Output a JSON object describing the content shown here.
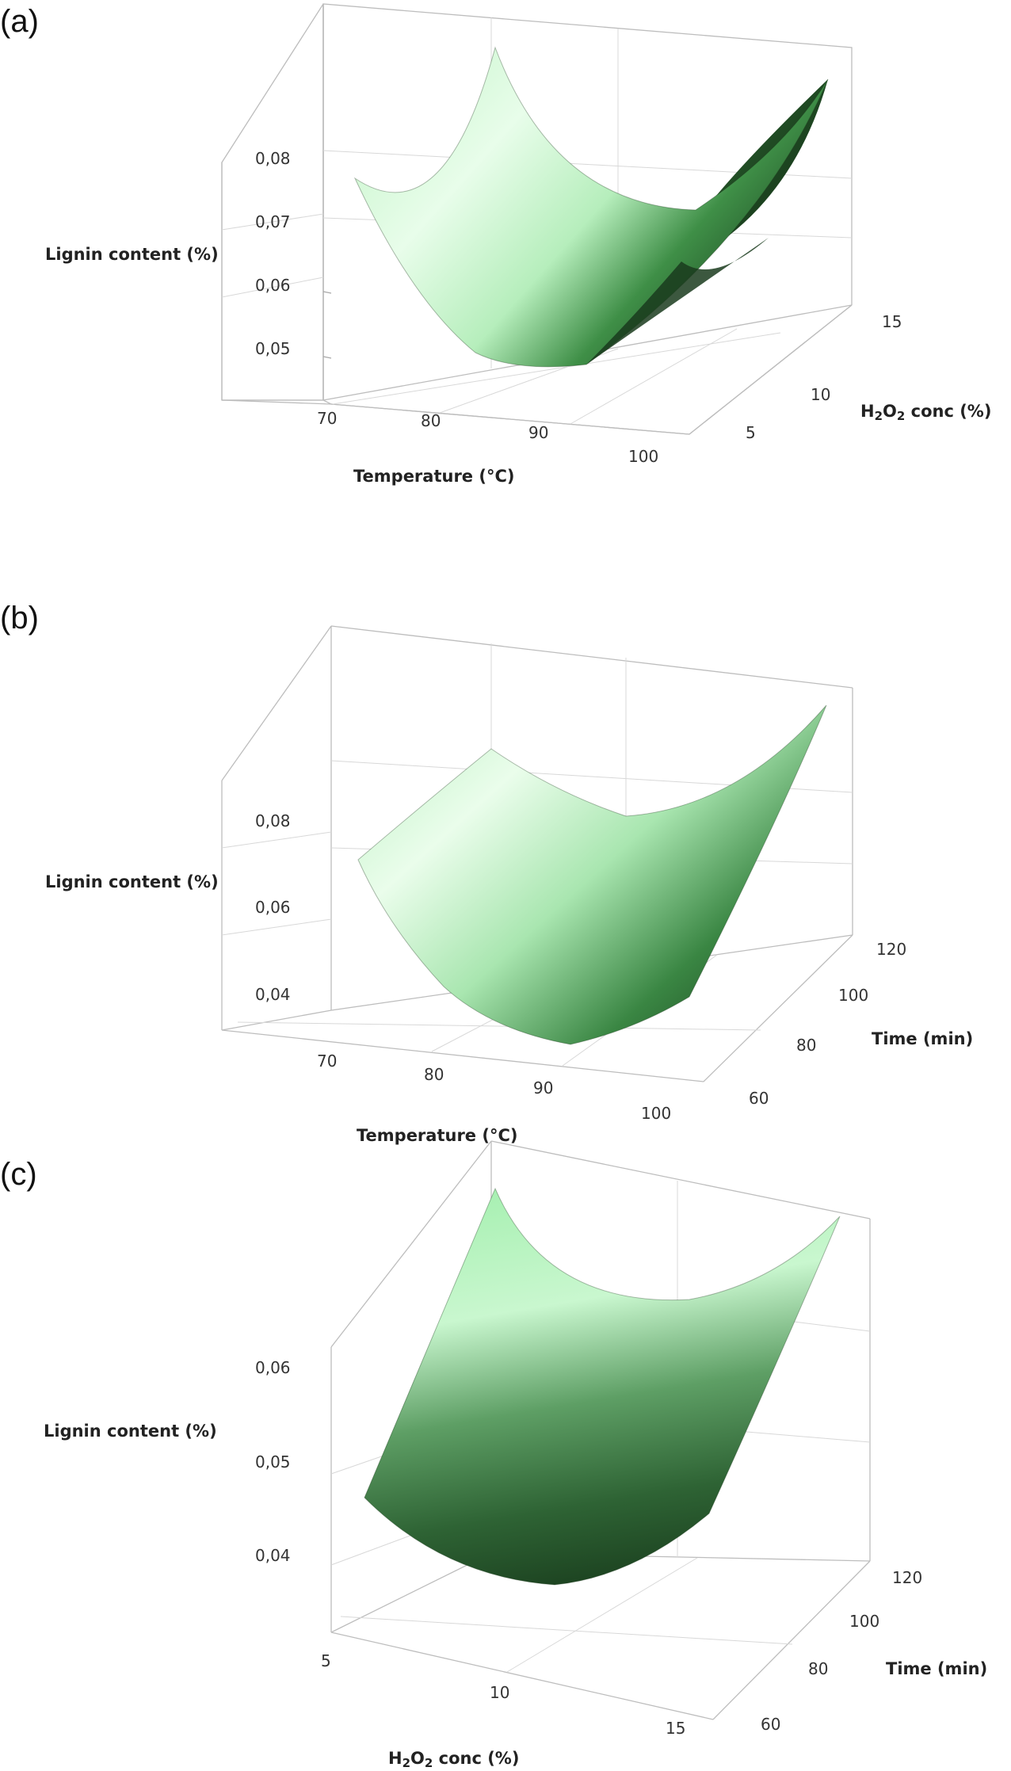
{
  "figure": {
    "panels": [
      {
        "label": "(a)",
        "z_title": "Lignin content (%)",
        "x_title": "Temperature (°C)",
        "y_title_parts": [
          "H",
          "2",
          "O",
          "2",
          " conc (%)"
        ],
        "z_ticks": [
          "0,05",
          "0,06",
          "0,07",
          "0,08"
        ],
        "x_ticks": [
          "70",
          "80",
          "90",
          "100"
        ],
        "y_ticks": [
          "5",
          "10",
          "15"
        ]
      },
      {
        "label": "(b)",
        "z_title": "Lignin content (%)",
        "x_title": "Temperature (°C)",
        "y_title": "Time (min)",
        "z_ticks": [
          "0,04",
          "0,06",
          "0,08"
        ],
        "x_ticks": [
          "70",
          "80",
          "90",
          "100"
        ],
        "y_ticks": [
          "60",
          "80",
          "100",
          "120"
        ]
      },
      {
        "label": "(c)",
        "z_title": "Lignin content (%)",
        "x_title_parts": [
          "H",
          "2",
          "O",
          "2",
          " conc (%)"
        ],
        "y_title": "Time (min)",
        "z_ticks": [
          "0,04",
          "0,05",
          "0,06"
        ],
        "x_ticks": [
          "5",
          "10",
          "15"
        ],
        "y_ticks": [
          "60",
          "80",
          "100",
          "120"
        ]
      }
    ],
    "colors": {
      "surface_light": "#e9fbe9",
      "surface_mid": "#8fd18f",
      "surface_dark": "#1d4a22",
      "box": "#bdbdbd"
    }
  },
  "chart_data": [
    {
      "type": "surface",
      "title": "(a)",
      "xlabel": "Temperature (°C)",
      "ylabel": "H2O2 conc (%)",
      "zlabel": "Lignin content (%)",
      "x_ticks": [
        70,
        80,
        90,
        100
      ],
      "y_ticks": [
        5,
        10,
        15
      ],
      "z_ticks": [
        0.05,
        0.06,
        0.07,
        0.08
      ],
      "x_range": [
        70,
        100
      ],
      "y_range": [
        5,
        15
      ],
      "z_range": [
        0.045,
        0.085
      ],
      "points": [
        {
          "x": 70,
          "y": 5,
          "z": 0.077
        },
        {
          "x": 70,
          "y": 15,
          "z": 0.083
        },
        {
          "x": 85,
          "y": 5,
          "z": 0.05
        },
        {
          "x": 85,
          "y": 10,
          "z": 0.048
        },
        {
          "x": 100,
          "y": 5,
          "z": 0.058
        },
        {
          "x": 100,
          "y": 15,
          "z": 0.085
        }
      ],
      "grid": true
    },
    {
      "type": "surface",
      "title": "(b)",
      "xlabel": "Temperature (°C)",
      "ylabel": "Time (min)",
      "zlabel": "Lignin content (%)",
      "x_ticks": [
        70,
        80,
        90,
        100
      ],
      "y_ticks": [
        60,
        80,
        100,
        120
      ],
      "z_ticks": [
        0.04,
        0.06,
        0.08
      ],
      "x_range": [
        70,
        100
      ],
      "y_range": [
        60,
        120
      ],
      "z_range": [
        0.03,
        0.1
      ],
      "points": [
        {
          "x": 70,
          "y": 60,
          "z": 0.07
        },
        {
          "x": 70,
          "y": 120,
          "z": 0.082
        },
        {
          "x": 88,
          "y": 60,
          "z": 0.036
        },
        {
          "x": 100,
          "y": 60,
          "z": 0.045
        },
        {
          "x": 100,
          "y": 120,
          "z": 0.099
        }
      ],
      "grid": true
    },
    {
      "type": "surface",
      "title": "(c)",
      "xlabel": "H2O2 conc (%)",
      "ylabel": "Time (min)",
      "zlabel": "Lignin content (%)",
      "x_ticks": [
        5,
        10,
        15
      ],
      "y_ticks": [
        60,
        80,
        100,
        120
      ],
      "z_ticks": [
        0.04,
        0.05,
        0.06
      ],
      "x_range": [
        5,
        15
      ],
      "y_range": [
        60,
        120
      ],
      "z_range": [
        0.035,
        0.07
      ],
      "points": [
        {
          "x": 5,
          "y": 60,
          "z": 0.046
        },
        {
          "x": 5,
          "y": 120,
          "z": 0.069
        },
        {
          "x": 11,
          "y": 60,
          "z": 0.036
        },
        {
          "x": 15,
          "y": 60,
          "z": 0.039
        },
        {
          "x": 15,
          "y": 120,
          "z": 0.062
        }
      ],
      "grid": true
    }
  ]
}
